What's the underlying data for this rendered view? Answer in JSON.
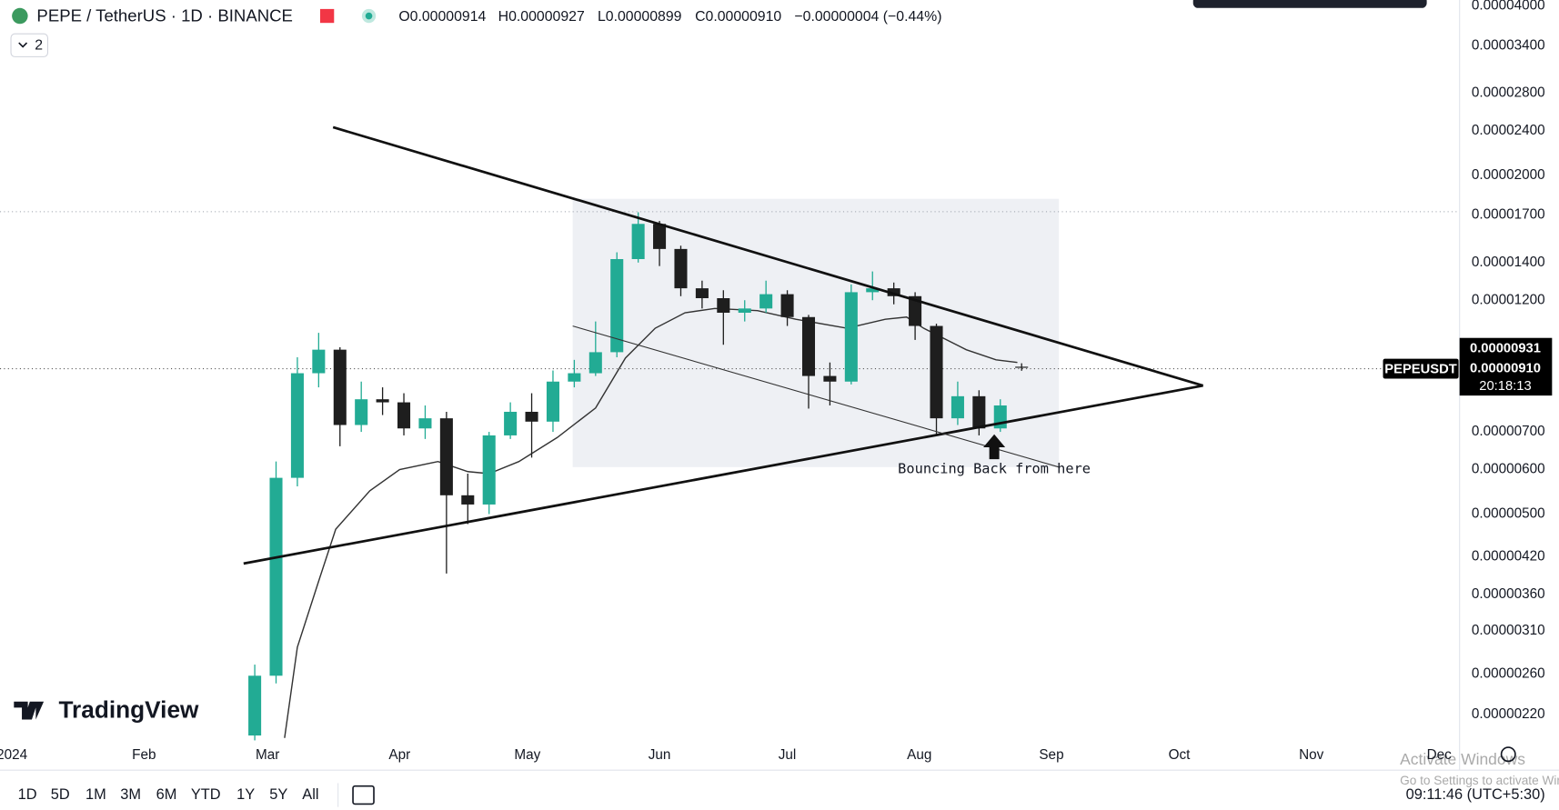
{
  "header": {
    "title": "PEPE / TetherUS · 1D · BINANCE",
    "ohlc": [
      "O0.00000914",
      "H0.00000927",
      "L0.00000899",
      "C0.00000910",
      "−0.00000004 (−0.44%)"
    ],
    "indicators": "2"
  },
  "brand": "TradingView",
  "price_tags": {
    "symbol": "PEPEUSDT",
    "ma": "0.00000931",
    "last": "0.00000910",
    "countdown": "20:18:13"
  },
  "toolbar": {
    "ranges": [
      "1D",
      "5D",
      "1M",
      "3M",
      "6M",
      "YTD",
      "1Y",
      "5Y",
      "All"
    ],
    "clock": "09:11:46 (UTC+5:30)"
  },
  "watermark": {
    "line1": "Activate Windows",
    "line2": "Go to Settings to activate Windows."
  },
  "chart_data": {
    "type": "candlestick",
    "log_scale": true,
    "grid": false,
    "annotation": "Bouncing Back from here",
    "up_color": "#22ab94",
    "down_color": "#1e1e1e",
    "x": [
      57,
      62,
      67,
      72,
      77,
      82,
      87,
      92,
      97,
      102,
      107,
      112,
      117,
      122,
      127,
      132,
      137,
      142,
      147,
      152,
      157,
      162,
      167,
      172,
      177,
      182,
      187,
      192,
      197,
      202,
      207,
      212,
      217,
      222,
      227,
      232,
      237
    ],
    "open": [
      2.02e-06,
      2.58e-06,
      5.8e-06,
      8.9e-06,
      9.8e-06,
      7.2e-06,
      8e-06,
      7.9e-06,
      7.1e-06,
      7.4e-06,
      5.4e-06,
      5.2e-06,
      6.9e-06,
      7.6e-06,
      7.3e-06,
      8.6e-06,
      8.9e-06,
      9.7e-06,
      1.42e-05,
      1.64e-05,
      1.48e-05,
      1.26e-05,
      1.21e-05,
      1.14e-05,
      1.16e-05,
      1.23e-05,
      1.12e-05,
      8.8e-06,
      8.6e-06,
      1.24e-05,
      1.26e-05,
      1.22e-05,
      1.08e-05,
      7.4e-06,
      8.1e-06,
      7.1e-06,
      9.14e-06
    ],
    "high": [
      2.7e-06,
      6.2e-06,
      9.5e-06,
      1.05e-05,
      9.9e-06,
      8.6e-06,
      8.4e-06,
      8.2e-06,
      7.8e-06,
      7.6e-06,
      5.9e-06,
      7e-06,
      7.9e-06,
      8.2e-06,
      9e-06,
      9.4e-06,
      1.1e-05,
      1.46e-05,
      1.72e-05,
      1.66e-05,
      1.5e-05,
      1.3e-05,
      1.25e-05,
      1.2e-05,
      1.3e-05,
      1.25e-05,
      1.13e-05,
      9.3e-06,
      1.28e-05,
      1.35e-05,
      1.29e-05,
      1.24e-05,
      1.09e-05,
      8.6e-06,
      8.3e-06,
      8e-06,
      9.27e-06
    ],
    "low": [
      1.98e-06,
      2.5e-06,
      5.6e-06,
      8.4e-06,
      6.6e-06,
      7e-06,
      7.5e-06,
      6.9e-06,
      6.8e-06,
      3.92e-06,
      4.8e-06,
      5e-06,
      6.8e-06,
      6.3e-06,
      7e-06,
      8.4e-06,
      8.8e-06,
      9.5e-06,
      1.4e-05,
      1.38e-05,
      1.22e-05,
      1.16e-05,
      1e-05,
      1.1e-05,
      1.14e-05,
      1.08e-05,
      7.7e-06,
      7.8e-06,
      8.5e-06,
      1.2e-05,
      1.18e-05,
      1.02e-05,
      6.9e-06,
      7.2e-06,
      6.9e-06,
      7e-06,
      8.99e-06
    ],
    "close": [
      2.58e-06,
      5.8e-06,
      8.9e-06,
      9.8e-06,
      7.2e-06,
      8e-06,
      7.9e-06,
      7.1e-06,
      7.4e-06,
      5.4e-06,
      5.2e-06,
      6.9e-06,
      7.6e-06,
      7.3e-06,
      8.6e-06,
      8.9e-06,
      9.7e-06,
      1.42e-05,
      1.64e-05,
      1.48e-05,
      1.26e-05,
      1.21e-05,
      1.14e-05,
      1.16e-05,
      1.23e-05,
      1.12e-05,
      8.8e-06,
      8.6e-06,
      1.24e-05,
      1.26e-05,
      1.22e-05,
      1.08e-05,
      7.4e-06,
      8.1e-06,
      7.1e-06,
      7.8e-06,
      9.1e-06
    ],
    "lines": [
      {
        "color": "#333333",
        "x": [
          64,
          67,
          72,
          76,
          84,
          91,
          100,
          107,
          112,
          119,
          128,
          137,
          144,
          151,
          158,
          165,
          175,
          184,
          196,
          205,
          210,
          214,
          224,
          231,
          236
        ],
        "values": [
          2e-06,
          2.9e-06,
          3.8e-06,
          4.7e-06,
          5.5e-06,
          6e-06,
          6.2e-06,
          5.95e-06,
          5.9e-06,
          6.2e-06,
          6.84e-06,
          7.72e-06,
          9.47e-06,
          1.07e-05,
          1.14e-05,
          1.16e-05,
          1.15e-05,
          1.11e-05,
          1.07e-05,
          1.11e-05,
          1.12e-05,
          1.07e-05,
          9.8e-06,
          9.4e-06,
          9.3e-06
        ]
      }
    ],
    "xlim": [
      -2.8,
      339.8
    ],
    "xticks": [
      {
        "value": 0,
        "label": "2024"
      },
      {
        "value": 31,
        "label": "Feb"
      },
      {
        "value": 60,
        "label": "Mar"
      },
      {
        "value": 91,
        "label": "Apr"
      },
      {
        "value": 121,
        "label": "May"
      },
      {
        "value": 152,
        "label": "Jun"
      },
      {
        "value": 182,
        "label": "Jul"
      },
      {
        "value": 213,
        "label": "Aug"
      },
      {
        "value": 244,
        "label": "Sep"
      },
      {
        "value": 274,
        "label": "Oct"
      },
      {
        "value": 305,
        "label": "Nov"
      },
      {
        "value": 335,
        "label": "Dec"
      }
    ],
    "ylim": [
      1.98e-06,
      4.1e-05
    ],
    "yticks": [
      {
        "value": 4e-05,
        "label": "0.00004000"
      },
      {
        "value": 3.4e-05,
        "label": "0.00003400"
      },
      {
        "value": 2.8e-05,
        "label": "0.00002800"
      },
      {
        "value": 2.4e-05,
        "label": "0.00002400"
      },
      {
        "value": 2e-05,
        "label": "0.00002000"
      },
      {
        "value": 1.7e-05,
        "label": "0.00001700"
      },
      {
        "value": 1.4e-05,
        "label": "0.00001400"
      },
      {
        "value": 1.2e-05,
        "label": "0.00001200"
      },
      {
        "value": 7e-06,
        "label": "0.00000700"
      },
      {
        "value": 6e-06,
        "label": "0.00000600"
      },
      {
        "value": 5e-06,
        "label": "0.00000500"
      },
      {
        "value": 4.2e-06,
        "label": "0.00000420"
      },
      {
        "value": 3.6e-06,
        "label": "0.00000360"
      },
      {
        "value": 3.1e-06,
        "label": "0.00000310"
      },
      {
        "value": 2.6e-06,
        "label": "0.00000260"
      },
      {
        "value": 2.2e-06,
        "label": "0.00000220"
      }
    ]
  }
}
